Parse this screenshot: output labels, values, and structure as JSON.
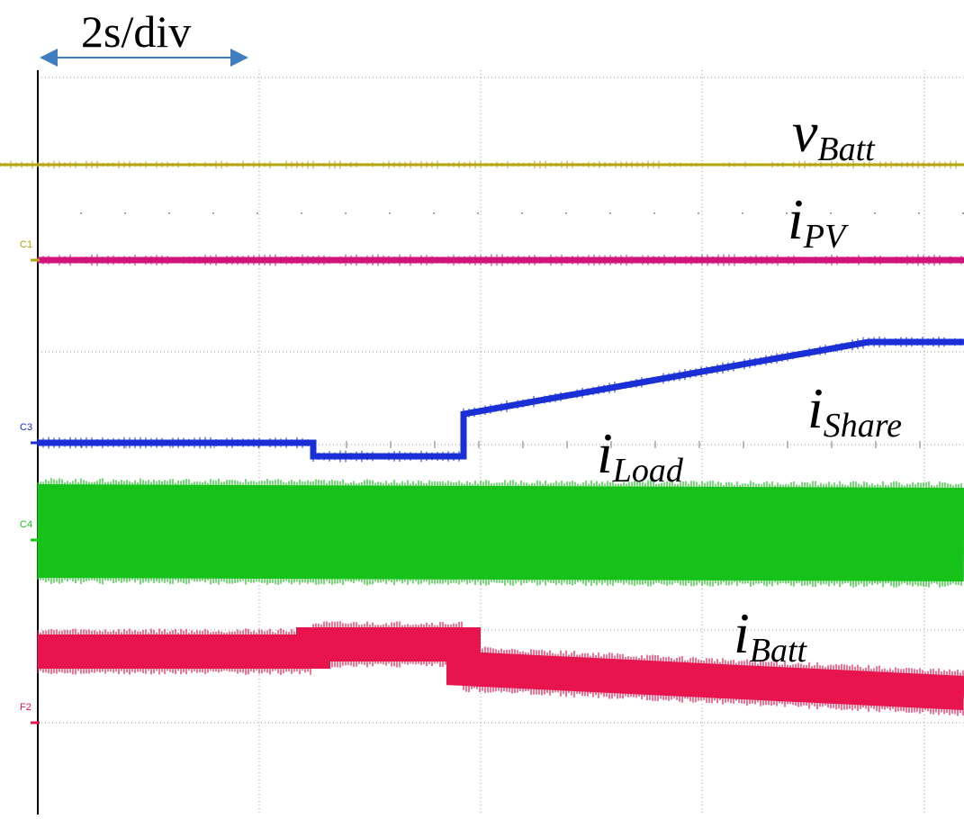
{
  "scale_label": "2s/div",
  "chart_data": {
    "type": "line",
    "title": "",
    "xlabel": "",
    "ylabel": "",
    "x_division": "2s/div",
    "grid": true,
    "colors": {
      "v_batt": "#b5a40a",
      "i_pv": "#d0147a",
      "i_share": "#1b2fd6",
      "i_load": "#17c21a",
      "i_batt": "#e8144e"
    },
    "channel_markers": [
      {
        "name": "C1",
        "color": "#b5a40a"
      },
      {
        "name": "C3",
        "color": "#1b2fd6"
      },
      {
        "name": "C4",
        "color": "#17c21a"
      },
      {
        "name": "F2",
        "color": "#e8144e"
      }
    ],
    "series": [
      {
        "name": "v",
        "sub": "Batt",
        "color": "#b5a40a",
        "points": [
          [
            0,
            183
          ],
          [
            1071,
            183
          ]
        ],
        "band": 3
      },
      {
        "name": "i",
        "sub": "PV",
        "color": "#d0147a",
        "points": [
          [
            42,
            289
          ],
          [
            1071,
            289
          ]
        ],
        "band": 7
      },
      {
        "name": "i",
        "sub": "Share",
        "color": "#1b2fd6",
        "points": [
          [
            42,
            492
          ],
          [
            348,
            492
          ],
          [
            348,
            507
          ],
          [
            515,
            507
          ],
          [
            515,
            460
          ],
          [
            965,
            380
          ],
          [
            1071,
            380
          ]
        ],
        "band": 7
      },
      {
        "name": "i",
        "sub": "Load",
        "color": "#17c21a",
        "points": [
          [
            42,
            590
          ],
          [
            1071,
            594
          ]
        ],
        "band": 104
      },
      {
        "name": "i",
        "sub": "Batt",
        "color": "#e8144e",
        "points": [
          [
            42,
            724
          ],
          [
            348,
            724
          ],
          [
            348,
            716
          ],
          [
            515,
            716
          ],
          [
            515,
            743
          ],
          [
            1071,
            770
          ]
        ],
        "band": 38
      }
    ]
  }
}
